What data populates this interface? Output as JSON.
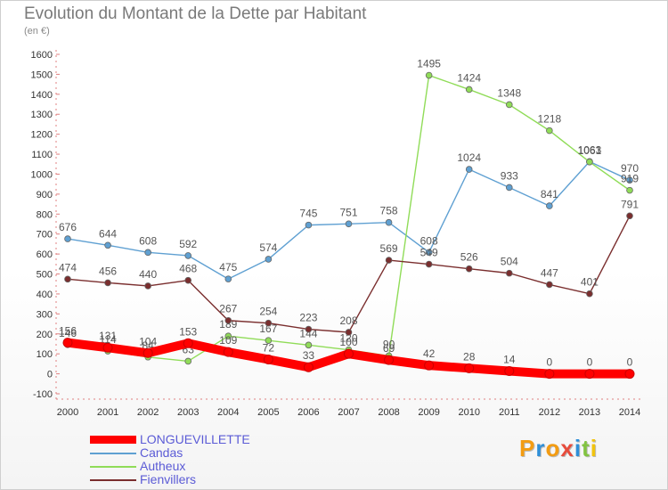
{
  "header": {
    "title": "Evolution du Montant de la Dette par Habitant",
    "subtitle": "(en €)"
  },
  "chart_data": {
    "type": "line",
    "title": "Evolution du Montant de la Dette par Habitant",
    "ylabel": "(en €)",
    "xlabel": "",
    "x": [
      "2000",
      "2001",
      "2002",
      "2003",
      "2004",
      "2005",
      "2006",
      "2007",
      "2008",
      "2009",
      "2010",
      "2011",
      "2012",
      "2013",
      "2014"
    ],
    "ylim": [
      -100,
      1600
    ],
    "yticks": [
      -100,
      0,
      100,
      200,
      300,
      400,
      500,
      600,
      700,
      800,
      900,
      1000,
      1100,
      1200,
      1300,
      1400,
      1500,
      1600
    ],
    "grid": false,
    "legend_position": "bottom-left",
    "series": [
      {
        "name": "LONGUEVILLETTE",
        "color": "#ff0000",
        "values": [
          156,
          131,
          104,
          153,
          109,
          72,
          33,
          100,
          69,
          42,
          28,
          14,
          0,
          0,
          0
        ]
      },
      {
        "name": "Candas",
        "color": "#5fa0d2",
        "values": [
          676,
          644,
          608,
          592,
          475,
          574,
          745,
          751,
          758,
          608,
          1024,
          933,
          841,
          1063,
          970
        ]
      },
      {
        "name": "Autheux",
        "color": "#90dc58",
        "values": [
          146,
          114,
          84,
          63,
          189,
          167,
          144,
          120,
          90,
          1495,
          1424,
          1348,
          1218,
          1061,
          919
        ]
      },
      {
        "name": "Fienvillers",
        "color": "#7a2e2e",
        "values": [
          474,
          456,
          440,
          468,
          267,
          254,
          223,
          208,
          569,
          549,
          526,
          504,
          447,
          401,
          791
        ]
      }
    ]
  },
  "logo": {
    "letters": [
      {
        "ch": "P",
        "color": "#f39c12"
      },
      {
        "ch": "r",
        "color": "#2f8fd8"
      },
      {
        "ch": "o",
        "color": "#f39c12"
      },
      {
        "ch": "x",
        "color": "#e74c3c"
      },
      {
        "ch": "i",
        "color": "#2f8fd8"
      },
      {
        "ch": "t",
        "color": "#82c341"
      },
      {
        "ch": "i",
        "color": "#f1c40f"
      }
    ]
  }
}
